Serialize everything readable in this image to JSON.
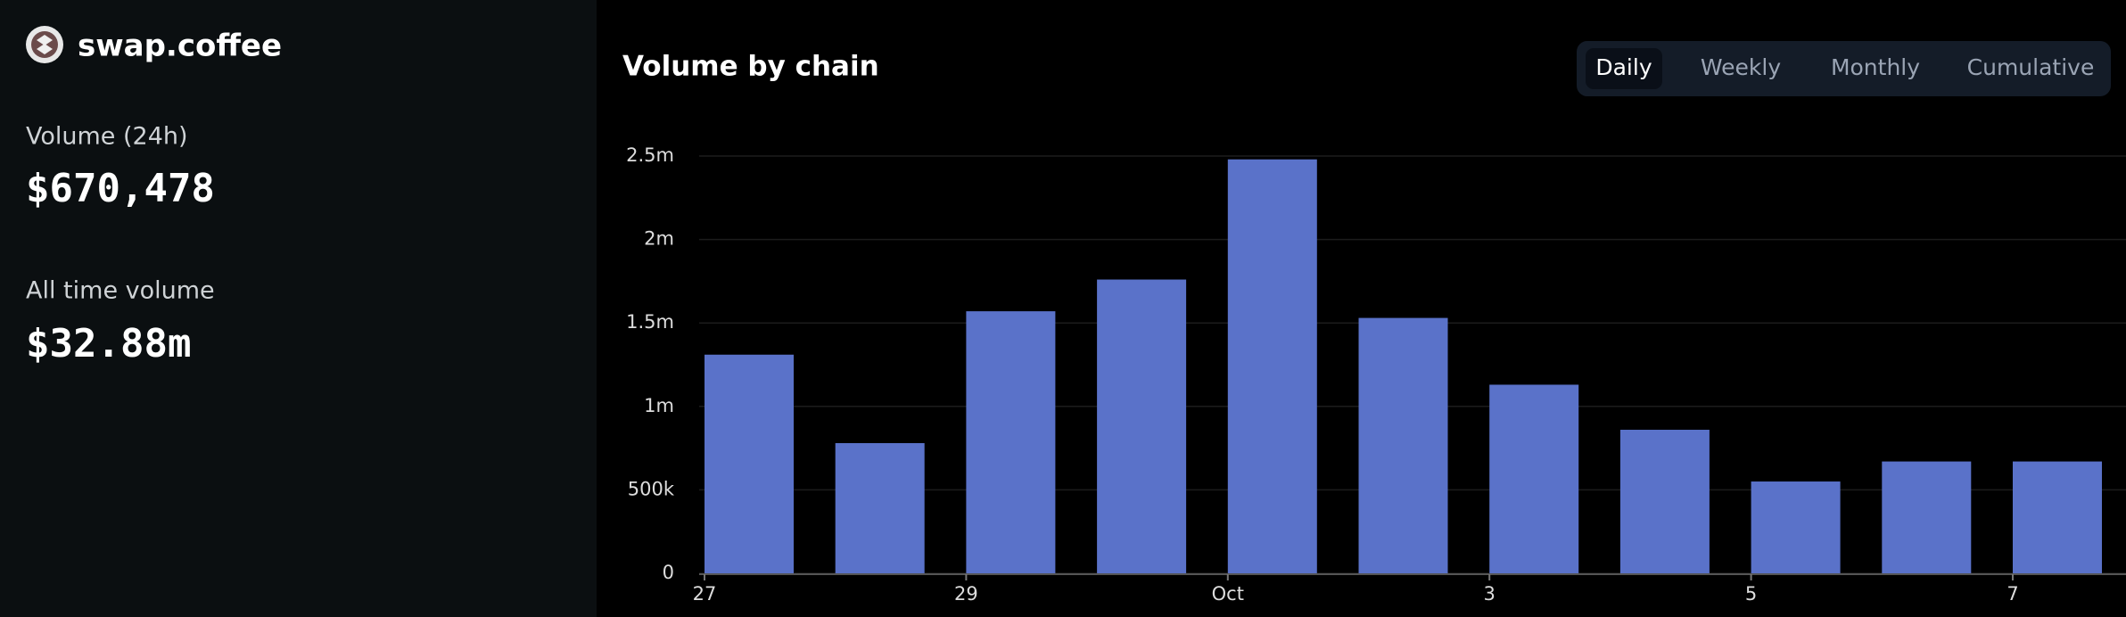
{
  "header": {
    "brand": "swap.coffee"
  },
  "stats": [
    {
      "label": "Volume (24h)",
      "value": "$670,478"
    },
    {
      "label": "All time volume",
      "value": "$32.88m"
    }
  ],
  "tabs": [
    "Daily",
    "Weekly",
    "Monthly",
    "Cumulative"
  ],
  "chart_data": {
    "type": "bar",
    "title": "Volume by chain",
    "categories": [
      "27",
      null,
      "29",
      null,
      "Oct",
      null,
      "3",
      null,
      "5",
      null,
      "7"
    ],
    "values": [
      1310000,
      780000,
      1570000,
      1760000,
      2480000,
      1530000,
      1130000,
      860000,
      550000,
      670000,
      670000
    ],
    "color": "#5a72c9",
    "ylim": [
      0,
      2500000
    ],
    "yticks": [
      0,
      {
        "value": 500000,
        "label": "500k"
      },
      {
        "value": 1000000,
        "label": "1m"
      },
      {
        "value": 1500000,
        "label": "1.5m"
      },
      {
        "value": 2000000,
        "label": "2m"
      },
      {
        "value": 2500000,
        "label": "2.5m"
      }
    ],
    "grid": true
  }
}
